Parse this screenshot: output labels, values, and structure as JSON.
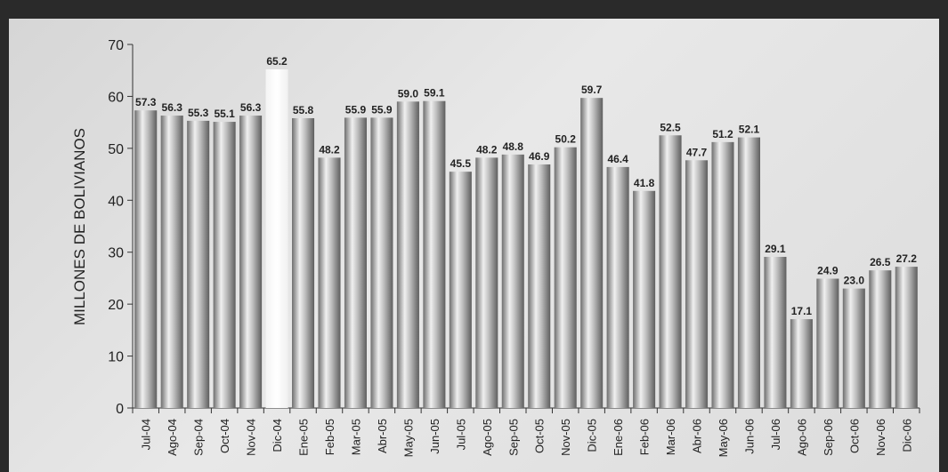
{
  "chart_data": {
    "type": "bar",
    "ylabel": "MILLONES DE BOLIVIANOS",
    "ylim": [
      0,
      70
    ],
    "yticks": [
      0,
      10,
      20,
      30,
      40,
      50,
      60,
      70
    ],
    "grid": false,
    "highlight_category": "Dic-04",
    "colors": {
      "bar": "#9a9a9a",
      "highlight": "#ffffff",
      "frame": "#2a2a2a"
    },
    "categories": [
      "Jul-04",
      "Ago-04",
      "Sep-04",
      "Oct-04",
      "Nov-04",
      "Dic-04",
      "Ene-05",
      "Feb-05",
      "Mar-05",
      "Abr-05",
      "May-05",
      "Jun-05",
      "Jul-05",
      "Ago-05",
      "Sep-05",
      "Oct-05",
      "Nov-05",
      "Dic-05",
      "Ene-06",
      "Feb-06",
      "Mar-06",
      "Abr-06",
      "May-06",
      "Jun-06",
      "Jul-06",
      "Ago-06",
      "Sep-06",
      "Oct-06",
      "Nov-06",
      "Dic-06"
    ],
    "values": [
      57.3,
      56.3,
      55.3,
      55.1,
      56.3,
      65.2,
      55.8,
      48.2,
      55.9,
      55.9,
      59.0,
      59.1,
      45.5,
      48.2,
      48.8,
      46.9,
      50.2,
      59.7,
      46.4,
      41.8,
      52.5,
      47.7,
      51.2,
      52.1,
      29.1,
      17.1,
      24.9,
      23.0,
      26.5,
      27.2
    ],
    "value_labels": [
      "57.3",
      "56.3",
      "55.3",
      "55.1",
      "56.3",
      "65.2",
      "55.8",
      "48.2",
      "55.9",
      "55.9",
      "59.0",
      "59.1",
      "45.5",
      "48.2",
      "48.8",
      "46.9",
      "50.2",
      "59.7",
      "46.4",
      "41.8",
      "52.5",
      "47.7",
      "51.2",
      "52.1",
      "29.1",
      "17.1",
      "24.9",
      "23.0",
      "26.5",
      "27.2"
    ]
  }
}
